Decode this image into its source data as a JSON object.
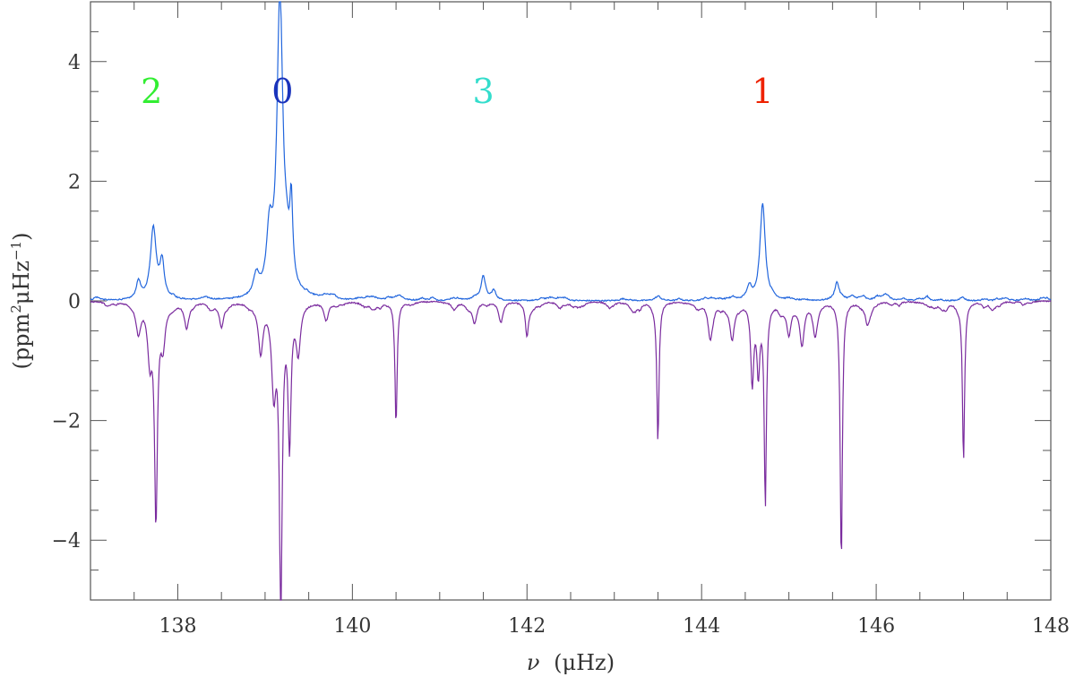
{
  "chart_data": {
    "type": "line",
    "title": "",
    "xlabel_symbol": "ν",
    "xlabel_unit": "(μHz)",
    "ylabel_base": "(ppm",
    "ylabel_sup1": "2",
    "ylabel_mid": "μHz",
    "ylabel_sup2": "−1",
    "ylabel_end": ")",
    "xlim": [
      137.0,
      148.0
    ],
    "ylim": [
      -5.0,
      5.0
    ],
    "xticks": [
      138,
      140,
      142,
      144,
      146,
      148
    ],
    "xtick_labels": [
      "138",
      "140",
      "142",
      "144",
      "146",
      "148"
    ],
    "yticks": [
      -4,
      -2,
      0,
      2,
      4
    ],
    "ytick_labels": [
      "−4",
      "−2",
      "0",
      "2",
      "4"
    ],
    "grid": false,
    "annotations": [
      {
        "text": "2",
        "x": 137.7,
        "y": 3.5,
        "color": "#33ee33"
      },
      {
        "text": "0",
        "x": 139.2,
        "y": 3.5,
        "color": "#1a33bb"
      },
      {
        "text": "3",
        "x": 141.5,
        "y": 3.5,
        "color": "#33ddcc"
      },
      {
        "text": "1",
        "x": 144.7,
        "y": 3.5,
        "color": "#ee2200"
      }
    ],
    "series": [
      {
        "color": "#2266dd",
        "noise": 0.04,
        "peaks": [
          {
            "x": 137.55,
            "y": 0.3,
            "w": 0.03
          },
          {
            "x": 137.72,
            "y": 1.2,
            "w": 0.04
          },
          {
            "x": 137.82,
            "y": 0.6,
            "w": 0.03
          },
          {
            "x": 138.9,
            "y": 0.3,
            "w": 0.04
          },
          {
            "x": 139.05,
            "y": 1.0,
            "w": 0.04
          },
          {
            "x": 139.17,
            "y": 5.0,
            "w": 0.04
          },
          {
            "x": 139.3,
            "y": 1.3,
            "w": 0.02
          },
          {
            "x": 139.25,
            "y": 0.5,
            "w": 0.04
          },
          {
            "x": 141.5,
            "y": 0.4,
            "w": 0.03
          },
          {
            "x": 141.62,
            "y": 0.15,
            "w": 0.03
          },
          {
            "x": 144.55,
            "y": 0.2,
            "w": 0.03
          },
          {
            "x": 144.7,
            "y": 1.55,
            "w": 0.035
          },
          {
            "x": 145.55,
            "y": 0.3,
            "w": 0.03
          }
        ]
      },
      {
        "color": "#7a2b9e",
        "noise": 0.08,
        "peaks": [
          {
            "x": 137.55,
            "y": -0.4,
            "w": 0.03
          },
          {
            "x": 137.68,
            "y": -0.9,
            "w": 0.03
          },
          {
            "x": 137.75,
            "y": -3.55,
            "w": 0.02
          },
          {
            "x": 137.83,
            "y": -0.6,
            "w": 0.03
          },
          {
            "x": 138.1,
            "y": -0.4,
            "w": 0.03
          },
          {
            "x": 138.5,
            "y": -0.4,
            "w": 0.03
          },
          {
            "x": 138.95,
            "y": -0.8,
            "w": 0.03
          },
          {
            "x": 139.1,
            "y": -1.4,
            "w": 0.03
          },
          {
            "x": 139.18,
            "y": -5.0,
            "w": 0.02
          },
          {
            "x": 139.28,
            "y": -2.3,
            "w": 0.02
          },
          {
            "x": 139.38,
            "y": -0.8,
            "w": 0.03
          },
          {
            "x": 139.7,
            "y": -0.3,
            "w": 0.03
          },
          {
            "x": 140.5,
            "y": -2.05,
            "w": 0.015
          },
          {
            "x": 141.4,
            "y": -0.35,
            "w": 0.03
          },
          {
            "x": 141.7,
            "y": -0.35,
            "w": 0.03
          },
          {
            "x": 142.0,
            "y": -0.5,
            "w": 0.02
          },
          {
            "x": 143.5,
            "y": -2.3,
            "w": 0.015
          },
          {
            "x": 144.1,
            "y": -0.55,
            "w": 0.03
          },
          {
            "x": 144.35,
            "y": -0.6,
            "w": 0.03
          },
          {
            "x": 144.58,
            "y": -1.3,
            "w": 0.02
          },
          {
            "x": 144.65,
            "y": -1.1,
            "w": 0.02
          },
          {
            "x": 144.73,
            "y": -3.3,
            "w": 0.015
          },
          {
            "x": 145.0,
            "y": -0.5,
            "w": 0.03
          },
          {
            "x": 145.15,
            "y": -0.7,
            "w": 0.03
          },
          {
            "x": 145.3,
            "y": -0.5,
            "w": 0.03
          },
          {
            "x": 145.6,
            "y": -4.35,
            "w": 0.015
          },
          {
            "x": 145.9,
            "y": -0.35,
            "w": 0.03
          },
          {
            "x": 147.0,
            "y": -2.65,
            "w": 0.015
          }
        ]
      }
    ]
  }
}
